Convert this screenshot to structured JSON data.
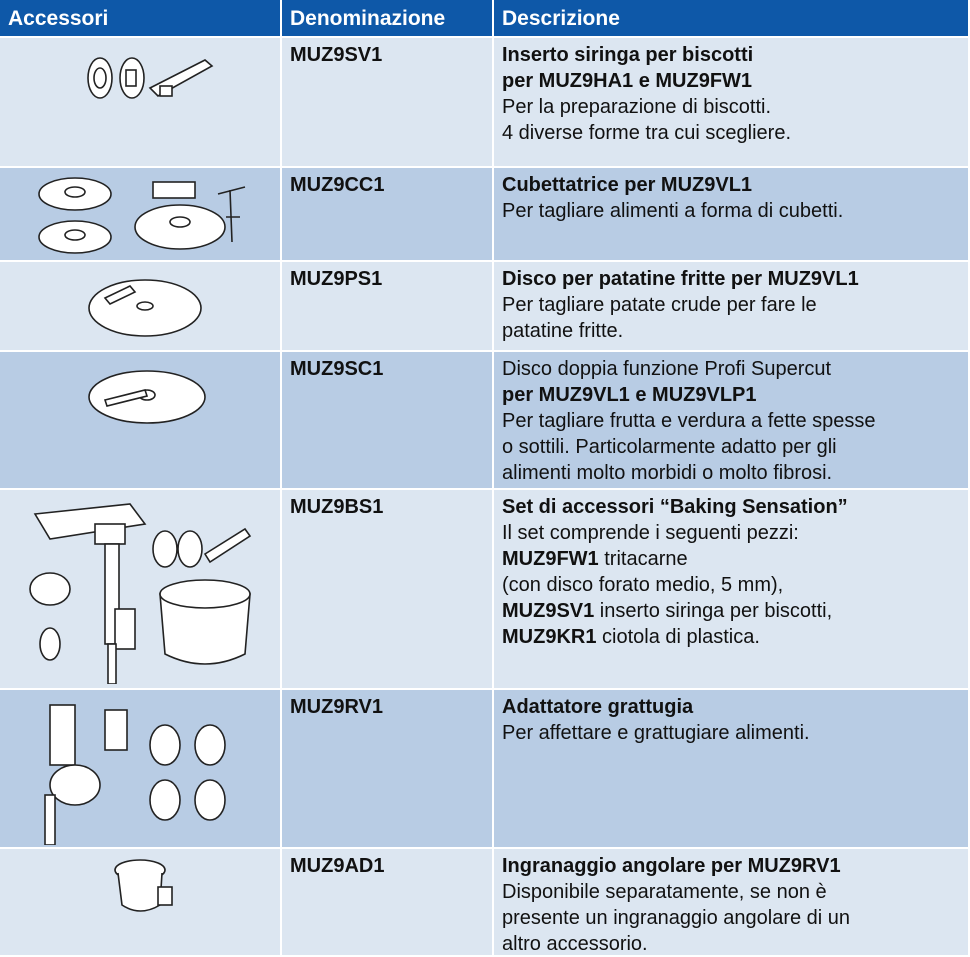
{
  "table": {
    "header": [
      "Accessori",
      "Denominazione",
      "Descrizione"
    ],
    "rows": [
      {
        "code": "MUZ9SV1",
        "lines": [
          [
            {
              "text": "Inserto siringa per biscotti",
              "bold": true
            }
          ],
          [
            {
              "text": "per MUZ9HA1 e MUZ9FW1",
              "bold": true
            }
          ],
          [
            {
              "text": "Per la preparazione di biscotti.",
              "bold": false
            }
          ],
          [
            {
              "text": "4 diverse forme tra cui scegliere.",
              "bold": false
            }
          ]
        ]
      },
      {
        "code": "MUZ9CC1",
        "lines": [
          [
            {
              "text": "Cubettatrice per MUZ9VL1",
              "bold": true
            }
          ],
          [
            {
              "text": "Per tagliare alimenti a forma di cubetti.",
              "bold": false
            }
          ]
        ]
      },
      {
        "code": "MUZ9PS1",
        "lines": [
          [
            {
              "text": "Disco per patatine fritte per MUZ9VL1",
              "bold": true
            }
          ],
          [
            {
              "text": "Per tagliare patate crude per fare le",
              "bold": false
            }
          ],
          [
            {
              "text": "patatine fritte.",
              "bold": false
            }
          ]
        ]
      },
      {
        "code": "MUZ9SC1",
        "lines": [
          [
            {
              "text": "Disco doppia funzione Profi Supercut",
              "bold": false
            }
          ],
          [
            {
              "text": "per MUZ9VL1 e MUZ9VLP1",
              "bold": true
            }
          ],
          [
            {
              "text": "Per tagliare frutta e verdura a fette spesse",
              "bold": false
            }
          ],
          [
            {
              "text": "o sottili. Particolarmente adatto per gli",
              "bold": false
            }
          ],
          [
            {
              "text": "alimenti molto morbidi o molto fibrosi.",
              "bold": false
            }
          ]
        ]
      },
      {
        "code": "MUZ9BS1",
        "lines": [
          [
            {
              "text": "Set di accessori “Baking Sensation”",
              "bold": true
            }
          ],
          [
            {
              "text": "Il set comprende i seguenti pezzi:",
              "bold": false
            }
          ],
          [
            {
              "text": "MUZ9FW1",
              "bold": true
            },
            {
              "text": " tritacarne",
              "bold": false
            }
          ],
          [
            {
              "text": "(con disco forato medio, 5 mm),",
              "bold": false
            }
          ],
          [
            {
              "text": "MUZ9SV1",
              "bold": true
            },
            {
              "text": " inserto siringa per biscotti,",
              "bold": false
            }
          ],
          [
            {
              "text": "MUZ9KR1",
              "bold": true
            },
            {
              "text": " ciotola di plastica.",
              "bold": false
            }
          ]
        ]
      },
      {
        "code": "MUZ9RV1",
        "lines": [
          [
            {
              "text": "Adattatore grattugia",
              "bold": true
            }
          ],
          [
            {
              "text": "Per affettare e grattugiare alimenti.",
              "bold": false
            }
          ]
        ]
      },
      {
        "code": "MUZ9AD1",
        "lines": [
          [
            {
              "text": "Ingranaggio angolare per MUZ9RV1",
              "bold": true
            }
          ],
          [
            {
              "text": "Disponibile separatamente, se non è",
              "bold": false
            }
          ],
          [
            {
              "text": "presente un ingranaggio angolare di un",
              "bold": false
            }
          ],
          [
            {
              "text": "altro accessorio.",
              "bold": false
            }
          ]
        ]
      }
    ]
  }
}
